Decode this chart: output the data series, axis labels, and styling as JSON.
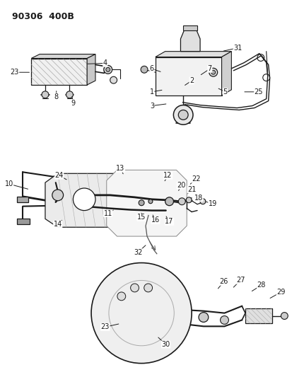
{
  "title": "90306  400B",
  "bg_color": "#ffffff",
  "line_color": "#1a1a1a",
  "fig_width": 4.14,
  "fig_height": 5.33,
  "dpi": 100
}
